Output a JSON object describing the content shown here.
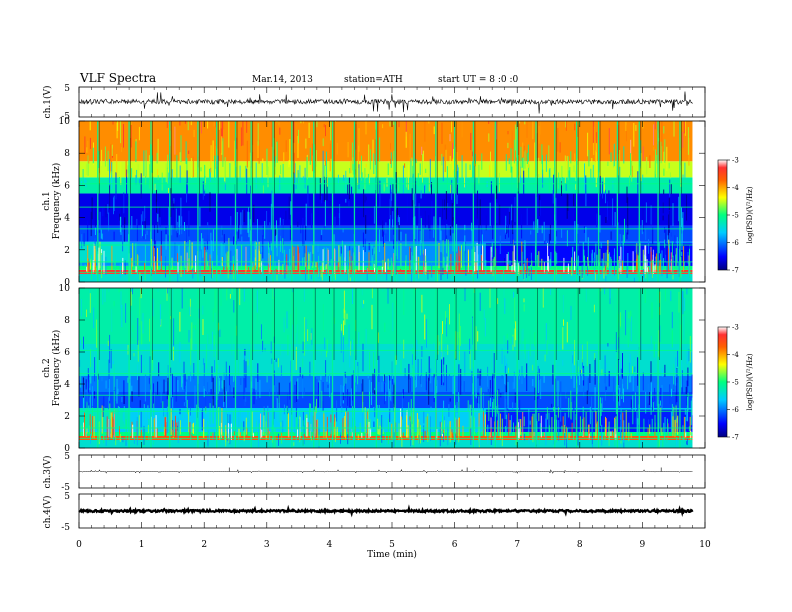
{
  "header": {
    "title": "VLF Spectra",
    "date": "Mar.14, 2013",
    "station": "station=ATH",
    "start": "start UT = 8 :0 :0"
  },
  "chart_data": [
    {
      "type": "line",
      "id": "ch1-waveform",
      "ylabel": "ch.1(V)",
      "ylim": [
        -5,
        5
      ],
      "y_ticks": [
        "5",
        "-5"
      ],
      "xlim": [
        0,
        10
      ],
      "trace": {
        "baseline": 0.1,
        "noise_amplitude": 0.8,
        "spike_amplitude": 3.5,
        "x_end": 9.8
      }
    },
    {
      "type": "heatmap",
      "id": "ch1-spectrogram",
      "ylabel": [
        "ch.1",
        "Frequency (kHz)"
      ],
      "xlim": [
        0,
        10
      ],
      "x_end": 9.8,
      "ylim": [
        0,
        10
      ],
      "y_ticks": [
        "0",
        "2",
        "4",
        "6",
        "8",
        "10"
      ],
      "colorbar": {
        "label": "log(PSD)(V²/Hz)",
        "range": [
          -7,
          -3
        ],
        "ticks": [
          "-3",
          "-4",
          "-5",
          "-6",
          "-7"
        ]
      },
      "bands": [
        {
          "f": [
            0,
            0.5
          ],
          "level": -5.4
        },
        {
          "f": [
            0.5,
            0.75
          ],
          "level": -3.3
        },
        {
          "f": [
            0.75,
            1.0
          ],
          "level": -5.0
        },
        {
          "f": [
            1.0,
            2.5
          ],
          "level": -5.9
        },
        {
          "f": [
            2.5,
            3.5
          ],
          "level": -6.2
        },
        {
          "f": [
            3.5,
            5.5
          ],
          "level": -6.6
        },
        {
          "f": [
            5.5,
            6.5
          ],
          "level": -5.2
        },
        {
          "f": [
            6.5,
            7.5
          ],
          "level": -4.5
        },
        {
          "f": [
            7.5,
            10.0
          ],
          "level": -3.9
        }
      ],
      "transitions": [
        {
          "t": 0.8,
          "f": [
            1.2,
            2.5
          ],
          "level_before": -5.4,
          "level_after": -6.5
        },
        {
          "t": 6.5,
          "f": [
            1.0,
            2.4
          ],
          "level_before": -6.5,
          "level_after": -5.2
        }
      ],
      "spike_times": [
        0.3,
        0.8,
        1.15,
        1.45,
        1.9,
        2.2,
        2.5,
        2.75,
        3.1,
        3.4,
        3.75,
        4.05,
        4.4,
        4.75,
        5.05,
        5.35,
        5.7,
        6.0,
        6.3,
        6.65,
        7.0,
        7.3,
        7.6,
        7.95,
        8.3,
        8.6,
        8.95,
        9.25,
        9.6
      ],
      "lines_kHz": [
        0.6,
        1.25,
        2.3,
        3.3,
        4.65,
        6.1
      ]
    },
    {
      "type": "heatmap",
      "id": "ch2-spectrogram",
      "ylabel": [
        "ch.2",
        "Frequency (kHz)"
      ],
      "xlim": [
        0,
        10
      ],
      "x_end": 9.8,
      "ylim": [
        0,
        10
      ],
      "y_ticks": [
        "0",
        "2",
        "4",
        "6",
        "8",
        "10"
      ],
      "colorbar": {
        "label": "log(PSD)(V²/Hz)",
        "range": [
          -7,
          -3
        ],
        "ticks": [
          "-3",
          "-4",
          "-5",
          "-6",
          "-7"
        ]
      },
      "bands": [
        {
          "f": [
            0,
            0.5
          ],
          "level": -5.4
        },
        {
          "f": [
            0.5,
            0.75
          ],
          "level": -3.6
        },
        {
          "f": [
            0.75,
            1.0
          ],
          "level": -5.0
        },
        {
          "f": [
            1.0,
            2.5
          ],
          "level": -5.6
        },
        {
          "f": [
            2.5,
            3.5
          ],
          "level": -6.2
        },
        {
          "f": [
            3.5,
            4.5
          ],
          "level": -6.0
        },
        {
          "f": [
            4.5,
            6.5
          ],
          "level": -5.4
        },
        {
          "f": [
            6.5,
            10.0
          ],
          "level": -5.2
        }
      ],
      "transitions": [
        {
          "t": 0.8,
          "f": [
            1.2,
            2.5
          ],
          "level_before": -5.3,
          "level_after": -6.4
        },
        {
          "t": 6.5,
          "f": [
            1.0,
            2.4
          ],
          "level_before": -6.4,
          "level_after": -5.2
        }
      ],
      "spike_times": [
        0.3,
        0.8,
        1.15,
        1.45,
        1.9,
        2.2,
        2.5,
        2.75,
        3.1,
        3.4,
        3.75,
        4.05,
        4.4,
        4.75,
        5.05,
        5.35,
        5.7,
        6.0,
        6.3,
        6.65,
        7.0,
        7.3,
        7.6,
        7.95,
        8.3,
        8.6,
        8.95,
        9.25,
        9.6
      ],
      "lines_kHz": [
        0.6,
        1.25,
        2.3,
        3.3,
        4.65,
        6.1
      ]
    },
    {
      "type": "line",
      "id": "ch3-waveform",
      "ylabel": "ch.3(V)",
      "ylim": [
        -5,
        5
      ],
      "y_ticks": [
        "5",
        "-5"
      ],
      "xlim": [
        0,
        10
      ],
      "trace": {
        "baseline": 0.0,
        "noise_amplitude": 0.05,
        "spike_amplitude": 0.6,
        "x_end": 9.8
      },
      "spike_times": [
        2.4,
        6.2,
        9.3
      ]
    },
    {
      "type": "line",
      "id": "ch4-waveform",
      "ylabel": "ch.4(V)",
      "ylim": [
        -5,
        5
      ],
      "y_ticks": [
        "5",
        "-5"
      ],
      "xlim": [
        0,
        10
      ],
      "xlabel": "Time (min)",
      "x_ticks": [
        "0",
        "1",
        "2",
        "3",
        "4",
        "5",
        "6",
        "7",
        "8",
        "9",
        "10"
      ],
      "trace": {
        "baseline": 0.0,
        "noise_amplitude": 0.3,
        "spike_amplitude": 0.5,
        "x_end": 9.8
      }
    }
  ]
}
